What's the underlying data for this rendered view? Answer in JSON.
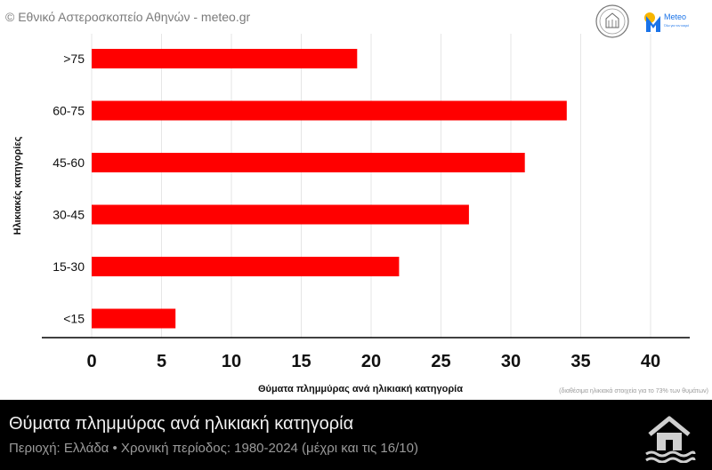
{
  "header": {
    "copyright": "© Εθνικό Αστεροσκοπείο Αθηνών - meteo.gr",
    "meteo_logo_text": "Meteo",
    "meteo_logo_tagline": "Όλα για τον καιρό"
  },
  "footnote": "(διαθέσιμα ηλικιακά στοιχεία για το 73% των θυμάτων)",
  "footer": {
    "title": "Θύματα πλημμύρας ανά ηλικιακή κατηγορία",
    "subtitle": "Περιοχή: Ελλάδα • Χρονική περίοδος: 1980-2024 (μέχρι και τις 16/10)"
  },
  "colors": {
    "bar": "#ff0000",
    "grid": "#e6e6e6",
    "footer_bg": "#000000",
    "meteo_blue": "#1a73e8",
    "icon": "#cfcfcf"
  },
  "icons": [
    "noa-seal-logo",
    "meteo-logo",
    "flooded-house-icon"
  ],
  "chart_data": {
    "type": "bar",
    "orientation": "horizontal",
    "categories": [
      ">75",
      "60-75",
      "45-60",
      "30-45",
      "15-30",
      "<15"
    ],
    "values": [
      19,
      34,
      31,
      27,
      22,
      6
    ],
    "xlabel": "Θύματα πλημμύρας ανά ηλικιακή κατηγορία",
    "ylabel": "Ηλικιακές κατηγορίες",
    "xlim": [
      0,
      43
    ],
    "xticks": [
      0,
      5,
      10,
      15,
      20,
      25,
      30,
      35,
      40
    ],
    "grid": true
  }
}
